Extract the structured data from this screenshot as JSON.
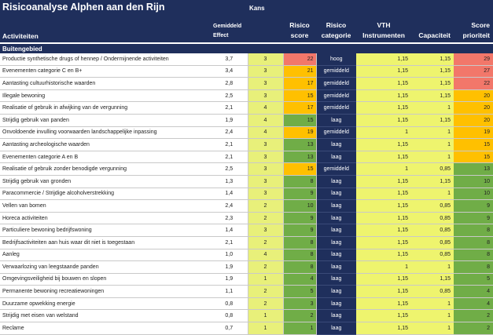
{
  "title": "Risicoanalyse Alphen aan den Rijn",
  "headers": {
    "activiteiten": "Activiteiten",
    "effect_line1": "Gemiddeld",
    "effect_line2": "Effect",
    "kans": "Kans",
    "risico_line1": "Risico",
    "risico_line2": "score",
    "categorie_line1": "Risico",
    "categorie_line2": "categorie",
    "vth": "VTH",
    "vth_line2": "Instrumenten",
    "capaciteit": "Capaciteit",
    "score_line1": "Score",
    "score_line2": "prioriteit"
  },
  "section": "Buitengebied",
  "colors": {
    "navy": "#1f2f5c",
    "yellow": "#eef46e",
    "red": "#f2776a",
    "orange": "#ffc000",
    "green": "#70ad47"
  },
  "rows": [
    {
      "activiteit": "Productie synthetische drugs of hennep / Ondermijnende activiteiten",
      "effect": "3,7",
      "kans": "3",
      "risico": "22",
      "risico_color": "red",
      "categorie": "hoog",
      "vth": "1,15",
      "capaciteit": "1,15",
      "score": "29",
      "score_color": "red"
    },
    {
      "activiteit": "Evenementen categorie C en B+",
      "effect": "3,4",
      "kans": "3",
      "risico": "21",
      "risico_color": "orange",
      "categorie": "gemiddeld",
      "vth": "1,15",
      "capaciteit": "1,15",
      "score": "27",
      "score_color": "red"
    },
    {
      "activiteit": "Aantasting cultuurhistorische waarden",
      "effect": "2,8",
      "kans": "3",
      "risico": "17",
      "risico_color": "orange",
      "categorie": "gemiddeld",
      "vth": "1,15",
      "capaciteit": "1,15",
      "score": "22",
      "score_color": "red"
    },
    {
      "activiteit": "Illegale bewoning",
      "effect": "2,5",
      "kans": "3",
      "risico": "15",
      "risico_color": "orange",
      "categorie": "gemiddeld",
      "vth": "1,15",
      "capaciteit": "1,15",
      "score": "20",
      "score_color": "orange"
    },
    {
      "activiteit": "Realisatie of gebruik in afwijking van de vergunning",
      "effect": "2,1",
      "kans": "4",
      "risico": "17",
      "risico_color": "orange",
      "categorie": "gemiddeld",
      "vth": "1,15",
      "capaciteit": "1",
      "score": "20",
      "score_color": "orange"
    },
    {
      "activiteit": "Strijdig gebruik van panden",
      "effect": "1,9",
      "kans": "4",
      "risico": "15",
      "risico_color": "green",
      "categorie": "laag",
      "vth": "1,15",
      "capaciteit": "1,15",
      "score": "20",
      "score_color": "orange"
    },
    {
      "activiteit": "Onvoldoende invulling voorwaarden landschappelijke inpassing",
      "effect": "2,4",
      "kans": "4",
      "risico": "19",
      "risico_color": "orange",
      "categorie": "gemiddeld",
      "vth": "1",
      "capaciteit": "1",
      "score": "19",
      "score_color": "orange"
    },
    {
      "activiteit": "Aantasting archeologische waarden",
      "effect": "2,1",
      "kans": "3",
      "risico": "13",
      "risico_color": "green",
      "categorie": "laag",
      "vth": "1,15",
      "capaciteit": "1",
      "score": "15",
      "score_color": "orange"
    },
    {
      "activiteit": "Evenementen categorie A en B",
      "effect": "2,1",
      "kans": "3",
      "risico": "13",
      "risico_color": "green",
      "categorie": "laag",
      "vth": "1,15",
      "capaciteit": "1",
      "score": "15",
      "score_color": "orange"
    },
    {
      "activiteit": "Realisatie of gebruik zonder benodigde vergunning",
      "effect": "2,5",
      "kans": "3",
      "risico": "15",
      "risico_color": "orange",
      "categorie": "gemiddeld",
      "vth": "1",
      "capaciteit": "0,85",
      "score": "13",
      "score_color": "green"
    },
    {
      "activiteit": "Strijdig gebruik van gronden",
      "effect": "1,3",
      "kans": "3",
      "risico": "8",
      "risico_color": "green",
      "categorie": "laag",
      "vth": "1,15",
      "capaciteit": "1,15",
      "score": "10",
      "score_color": "green"
    },
    {
      "activiteit": "Paracommercie / Strijdige alcoholverstrekking",
      "effect": "1,4",
      "kans": "3",
      "risico": "9",
      "risico_color": "green",
      "categorie": "laag",
      "vth": "1,15",
      "capaciteit": "1",
      "score": "10",
      "score_color": "green"
    },
    {
      "activiteit": "Vellen van bomen",
      "effect": "2,4",
      "kans": "2",
      "risico": "10",
      "risico_color": "green",
      "categorie": "laag",
      "vth": "1,15",
      "capaciteit": "0,85",
      "score": "9",
      "score_color": "green"
    },
    {
      "activiteit": "Horeca activiteiten",
      "effect": "2,3",
      "kans": "2",
      "risico": "9",
      "risico_color": "green",
      "categorie": "laag",
      "vth": "1,15",
      "capaciteit": "0,85",
      "score": "9",
      "score_color": "green"
    },
    {
      "activiteit": "Particuliere bewoning bedrijfswoning",
      "effect": "1,4",
      "kans": "3",
      "risico": "9",
      "risico_color": "green",
      "categorie": "laag",
      "vth": "1,15",
      "capaciteit": "0,85",
      "score": "8",
      "score_color": "green"
    },
    {
      "activiteit": "Bedrijfsactiviteiten aan huis waar dit niet is toegestaan",
      "effect": "2,1",
      "kans": "2",
      "risico": "8",
      "risico_color": "green",
      "categorie": "laag",
      "vth": "1,15",
      "capaciteit": "0,85",
      "score": "8",
      "score_color": "green"
    },
    {
      "activiteit": "Aanleg",
      "effect": "1,0",
      "kans": "4",
      "risico": "8",
      "risico_color": "green",
      "categorie": "laag",
      "vth": "1,15",
      "capaciteit": "0,85",
      "score": "8",
      "score_color": "green"
    },
    {
      "activiteit": "Verwaarlozing van leegstaande panden",
      "effect": "1,9",
      "kans": "2",
      "risico": "8",
      "risico_color": "green",
      "categorie": "laag",
      "vth": "1",
      "capaciteit": "1",
      "score": "8",
      "score_color": "green"
    },
    {
      "activiteit": "Omgevingsveiligheid bij bouwen en slopen",
      "effect": "1,9",
      "kans": "1",
      "risico": "4",
      "risico_color": "green",
      "categorie": "laag",
      "vth": "1,15",
      "capaciteit": "1,15",
      "score": "5",
      "score_color": "green"
    },
    {
      "activiteit": "Permanente bewoning recreatiewoningen",
      "effect": "1,1",
      "kans": "2",
      "risico": "5",
      "risico_color": "green",
      "categorie": "laag",
      "vth": "1,15",
      "capaciteit": "0,85",
      "score": "4",
      "score_color": "green"
    },
    {
      "activiteit": "Duurzame opwekking energie",
      "effect": "0,8",
      "kans": "2",
      "risico": "3",
      "risico_color": "green",
      "categorie": "laag",
      "vth": "1,15",
      "capaciteit": "1",
      "score": "4",
      "score_color": "green"
    },
    {
      "activiteit": "Strijdig met eisen van welstand",
      "effect": "0,8",
      "kans": "1",
      "risico": "2",
      "risico_color": "green",
      "categorie": "laag",
      "vth": "1,15",
      "capaciteit": "1",
      "score": "2",
      "score_color": "green"
    },
    {
      "activiteit": "Reclame",
      "effect": "0,7",
      "kans": "1",
      "risico": "1",
      "risico_color": "green",
      "categorie": "laag",
      "vth": "1,15",
      "capaciteit": "1",
      "score": "2",
      "score_color": "green"
    }
  ]
}
